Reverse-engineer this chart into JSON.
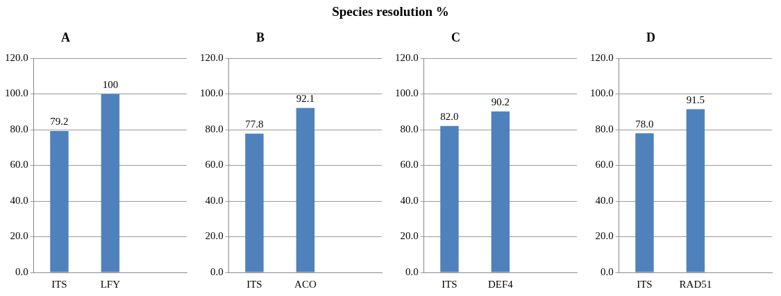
{
  "chart_data": [
    {
      "type": "bar",
      "title": "A",
      "annotations": [
        "Species resolution %"
      ],
      "categories": [
        "ITS",
        "LFY",
        null
      ],
      "values": [
        79.2,
        100,
        null
      ],
      "value_labels": [
        "79.2",
        "100",
        null
      ],
      "color": "#4f81bd",
      "ylim": [
        0,
        120
      ],
      "yticks": [
        {
          "value": 0,
          "label": "0.0"
        },
        {
          "value": 20,
          "label": "20.0"
        },
        {
          "value": 40,
          "label": "40.0"
        },
        {
          "value": 60,
          "label": "60.0"
        },
        {
          "value": 80,
          "label": "80.0"
        },
        {
          "value": 100,
          "label": "100.0"
        },
        {
          "value": 120,
          "label": "120.0"
        }
      ],
      "grid": "y"
    },
    {
      "type": "bar",
      "title": "B",
      "categories": [
        "ITS",
        "ACO",
        null
      ],
      "values": [
        77.8,
        92.1,
        null
      ],
      "value_labels": [
        "77.8",
        "92.1",
        null
      ],
      "color": "#4f81bd",
      "ylim": [
        0,
        120
      ],
      "yticks": [
        {
          "value": 0,
          "label": "0.0"
        },
        {
          "value": 20,
          "label": "20.0"
        },
        {
          "value": 40,
          "label": "40.0"
        },
        {
          "value": 60,
          "label": "60.0"
        },
        {
          "value": 80,
          "label": "80.0"
        },
        {
          "value": 100,
          "label": "100.0"
        },
        {
          "value": 120,
          "label": "120.0"
        }
      ],
      "grid": "y"
    },
    {
      "type": "bar",
      "title": "C",
      "categories": [
        "ITS",
        "DEF4",
        null
      ],
      "values": [
        82.0,
        90.2,
        null
      ],
      "value_labels": [
        "82.0",
        "90.2",
        null
      ],
      "color": "#4f81bd",
      "ylim": [
        0,
        120
      ],
      "yticks": [
        {
          "value": 0,
          "label": "0.0"
        },
        {
          "value": 20,
          "label": "20.0"
        },
        {
          "value": 40,
          "label": "40.0"
        },
        {
          "value": 60,
          "label": "60.0"
        },
        {
          "value": 80,
          "label": "80.0"
        },
        {
          "value": 100,
          "label": "100.0"
        },
        {
          "value": 120,
          "label": "120.0"
        }
      ],
      "grid": "y"
    },
    {
      "type": "bar",
      "title": "D",
      "categories": [
        "ITS",
        "RAD51",
        null
      ],
      "values": [
        78.0,
        91.5,
        null
      ],
      "value_labels": [
        "78.0",
        "91.5",
        null
      ],
      "color": "#4f81bd",
      "ylim": [
        0,
        120
      ],
      "yticks": [
        {
          "value": 0,
          "label": "0.0"
        },
        {
          "value": 20,
          "label": "20.0"
        },
        {
          "value": 40,
          "label": "40.0"
        },
        {
          "value": 60,
          "label": "60.0"
        },
        {
          "value": 80,
          "label": "80.0"
        },
        {
          "value": 100,
          "label": "100.0"
        },
        {
          "value": 120,
          "label": "120.0"
        }
      ],
      "grid": "y"
    }
  ]
}
